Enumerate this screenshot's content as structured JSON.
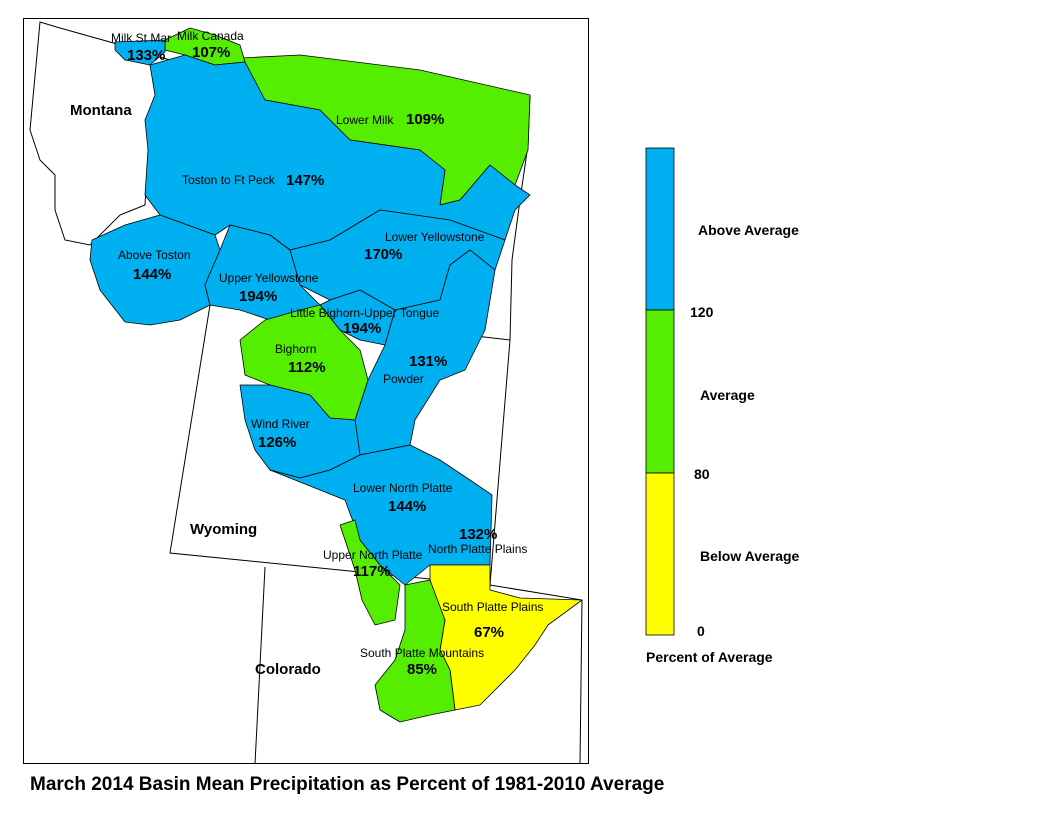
{
  "colors": {
    "above": "#00b0f0",
    "average": "#55ee00",
    "below": "#ffff00",
    "border": "#000000"
  },
  "states": {
    "montana": "Montana",
    "wyoming": "Wyoming",
    "colorado": "Colorado"
  },
  "basins": {
    "milk_st_mary": {
      "name": "Milk St Mar",
      "pct": "133%",
      "category": "above"
    },
    "milk_canada": {
      "name": "Milk Canada",
      "pct": "107%",
      "category": "average"
    },
    "lower_milk": {
      "name": "Lower Milk",
      "pct": "109%",
      "category": "average"
    },
    "toston_ft_peck": {
      "name": "Toston to Ft Peck",
      "pct": "147%",
      "category": "above"
    },
    "above_toston": {
      "name": "Above Toston",
      "pct": "144%",
      "category": "above"
    },
    "lower_yellowstone": {
      "name": "Lower Yellowstone",
      "pct": "170%",
      "category": "above"
    },
    "upper_yellowstone": {
      "name": "Upper Yellowstone",
      "pct": "194%",
      "category": "above"
    },
    "little_bighorn": {
      "name": "Little Bighorn-Upper Tongue",
      "pct": "194%",
      "category": "above"
    },
    "bighorn": {
      "name": "Bighorn",
      "pct": "112%",
      "category": "average"
    },
    "powder": {
      "name": "Powder",
      "pct": "131%",
      "category": "above"
    },
    "wind_river": {
      "name": "Wind River",
      "pct": "126%",
      "category": "above"
    },
    "lower_north_platte": {
      "name": "Lower North Platte",
      "pct": "144%",
      "category": "above"
    },
    "north_platte_plains": {
      "name": "North Platte Plains",
      "pct": "132%",
      "category": "above"
    },
    "upper_north_platte": {
      "name": "Upper North Platte",
      "pct": "117%",
      "category": "average"
    },
    "south_platte_plains": {
      "name": "South Platte Plains",
      "pct": "67%",
      "category": "below"
    },
    "south_platte_mountains": {
      "name": "South Platte Mountains",
      "pct": "85%",
      "category": "average"
    }
  },
  "legend": {
    "above_label": "Above Average",
    "average_label": "Average",
    "below_label": "Below Average",
    "tick_120": "120",
    "tick_80": "80",
    "tick_0": "0",
    "title": "Percent of Average"
  },
  "caption": "March 2014 Basin Mean Precipitation as Percent of 1981-2010 Average"
}
